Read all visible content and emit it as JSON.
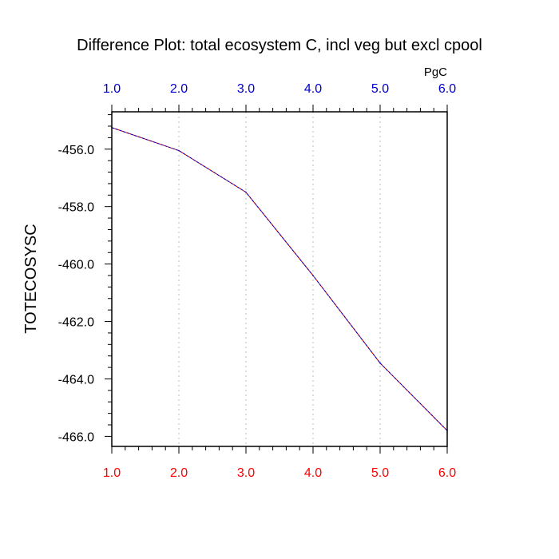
{
  "chart_data": {
    "type": "line",
    "title": "Difference Plot: total ecosystem C, incl veg but excl cpool",
    "units_label": "PgC",
    "ylabel": "TOTECOSYSC",
    "xlabel": "",
    "x": [
      1.0,
      2.0,
      3.0,
      4.0,
      5.0,
      6.0
    ],
    "series": [
      {
        "values": [
          -455.25,
          -456.05,
          -457.5,
          -460.4,
          -463.45,
          -465.8
        ],
        "color": "#cc0000",
        "color2": "#0000cc"
      }
    ],
    "xlim": [
      1.0,
      6.0
    ],
    "ylim": [
      -466.35,
      -454.7
    ],
    "xticks": [
      "1.0",
      "2.0",
      "3.0",
      "4.0",
      "5.0",
      "6.0"
    ],
    "xtick_values": [
      1,
      2,
      3,
      4,
      5,
      6
    ],
    "yticks": [
      "-456.0",
      "-458.0",
      "-460.0",
      "-462.0",
      "-464.0",
      "-466.0"
    ],
    "ytick_values": [
      -456,
      -458,
      -460,
      -462,
      -464,
      -466
    ],
    "top_axis_color": "#0000cc",
    "bottom_axis_color": "#ff0000",
    "vertical_grid": true,
    "horizontal_grid": false
  }
}
